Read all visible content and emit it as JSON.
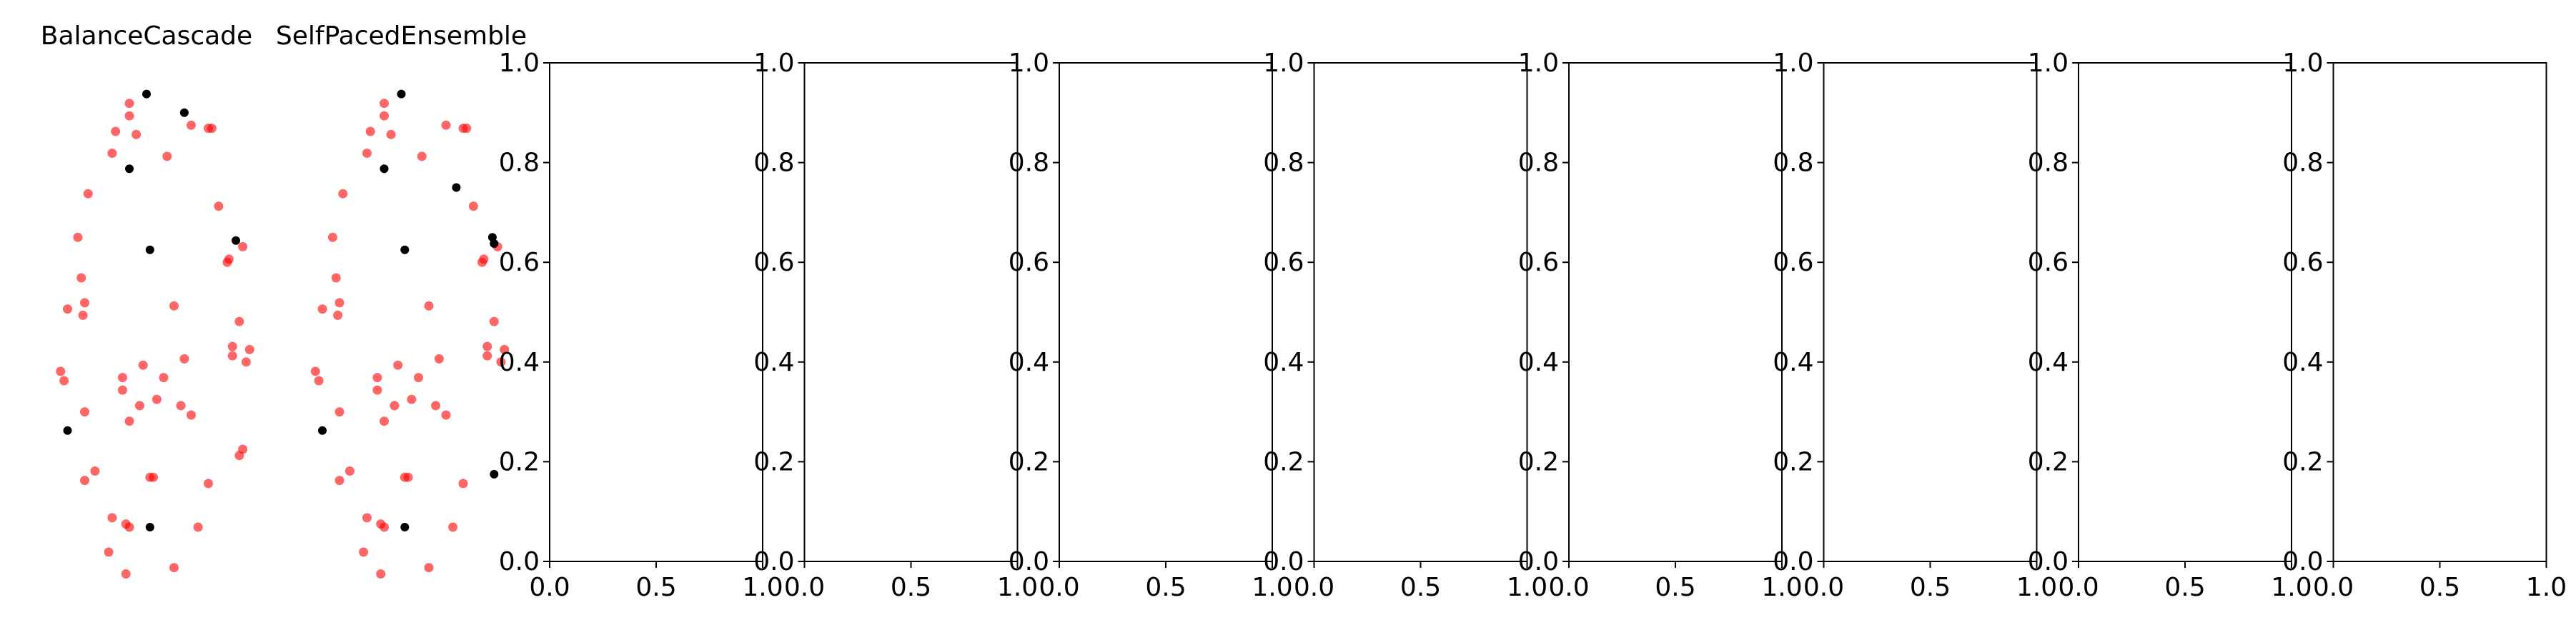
{
  "figure": {
    "background": "#ffffff",
    "point_colors": {
      "majority": "#ff0000",
      "minority": "#000000"
    }
  },
  "chart_data": [
    {
      "type": "scatter",
      "title": "BalanceCascade",
      "axes_visible": false,
      "xlim": [
        -3.1,
        3.1
      ],
      "ylim": [
        -4.0,
        4.0
      ],
      "series": [
        {
          "color": "#ff0000",
          "opacity": 0.6,
          "points": [
            [
              -0.5,
              3.35
            ],
            [
              -0.5,
              3.15
            ],
            [
              -0.9,
              2.9
            ],
            [
              -0.3,
              2.85
            ],
            [
              1.3,
              3.0
            ],
            [
              1.8,
              2.95
            ],
            [
              1.9,
              2.95
            ],
            [
              -1.0,
              2.55
            ],
            [
              0.6,
              2.5
            ],
            [
              -1.7,
              1.9
            ],
            [
              2.1,
              1.7
            ],
            [
              -2.0,
              1.2
            ],
            [
              2.8,
              1.05
            ],
            [
              2.4,
              0.85
            ],
            [
              2.35,
              0.8
            ],
            [
              -1.9,
              0.55
            ],
            [
              -1.8,
              0.15
            ],
            [
              0.8,
              0.1
            ],
            [
              -2.3,
              0.05
            ],
            [
              -1.85,
              -0.05
            ],
            [
              2.7,
              -0.15
            ],
            [
              2.5,
              -0.55
            ],
            [
              3.0,
              -0.6
            ],
            [
              2.5,
              -0.7
            ],
            [
              2.9,
              -0.8
            ],
            [
              -0.1,
              -0.85
            ],
            [
              1.1,
              -0.75
            ],
            [
              -2.5,
              -0.95
            ],
            [
              -2.4,
              -1.1
            ],
            [
              0.5,
              -1.05
            ],
            [
              -0.7,
              -1.05
            ],
            [
              -0.7,
              -1.25
            ],
            [
              0.3,
              -1.4
            ],
            [
              -0.2,
              -1.5
            ],
            [
              1.0,
              -1.5
            ],
            [
              -1.8,
              -1.6
            ],
            [
              1.3,
              -1.65
            ],
            [
              -0.5,
              -1.75
            ],
            [
              2.8,
              -2.2
            ],
            [
              2.7,
              -2.3
            ],
            [
              -1.5,
              -2.55
            ],
            [
              -1.8,
              -2.7
            ],
            [
              0.1,
              -2.65
            ],
            [
              0.2,
              -2.65
            ],
            [
              1.8,
              -2.75
            ],
            [
              -1.0,
              -3.3
            ],
            [
              -0.6,
              -3.4
            ],
            [
              -0.5,
              -3.45
            ],
            [
              1.5,
              -3.45
            ],
            [
              -1.1,
              -3.85
            ],
            [
              0.8,
              -4.1
            ],
            [
              -0.6,
              -4.2
            ]
          ]
        },
        {
          "color": "#000000",
          "opacity": 1,
          "points": [
            [
              0.0,
              3.5
            ],
            [
              1.1,
              3.2
            ],
            [
              -0.5,
              2.3
            ],
            [
              0.1,
              1.0
            ],
            [
              2.6,
              1.15
            ],
            [
              -2.3,
              -1.9
            ],
            [
              0.1,
              -3.45
            ]
          ]
        }
      ]
    },
    {
      "type": "scatter",
      "title": "SelfPacedEnsemble",
      "axes_visible": false,
      "xlim": [
        -3.1,
        3.1
      ],
      "ylim": [
        -4.0,
        4.0
      ],
      "series": [
        {
          "color": "#ff0000",
          "opacity": 0.6,
          "points": [
            [
              -0.5,
              3.35
            ],
            [
              -0.5,
              3.15
            ],
            [
              -0.9,
              2.9
            ],
            [
              -0.3,
              2.85
            ],
            [
              1.3,
              3.0
            ],
            [
              1.8,
              2.95
            ],
            [
              1.9,
              2.95
            ],
            [
              -1.0,
              2.55
            ],
            [
              0.6,
              2.5
            ],
            [
              -1.7,
              1.9
            ],
            [
              2.1,
              1.7
            ],
            [
              -2.0,
              1.2
            ],
            [
              2.8,
              1.05
            ],
            [
              2.4,
              0.85
            ],
            [
              2.35,
              0.8
            ],
            [
              -1.9,
              0.55
            ],
            [
              -1.8,
              0.15
            ],
            [
              0.8,
              0.1
            ],
            [
              -2.3,
              0.05
            ],
            [
              -1.85,
              -0.05
            ],
            [
              2.7,
              -0.15
            ],
            [
              2.5,
              -0.55
            ],
            [
              3.0,
              -0.6
            ],
            [
              2.5,
              -0.7
            ],
            [
              2.9,
              -0.8
            ],
            [
              -0.1,
              -0.85
            ],
            [
              1.1,
              -0.75
            ],
            [
              -2.5,
              -0.95
            ],
            [
              -2.4,
              -1.1
            ],
            [
              0.5,
              -1.05
            ],
            [
              -0.7,
              -1.05
            ],
            [
              -0.7,
              -1.25
            ],
            [
              0.3,
              -1.4
            ],
            [
              -0.2,
              -1.5
            ],
            [
              1.0,
              -1.5
            ],
            [
              -1.8,
              -1.6
            ],
            [
              1.3,
              -1.65
            ],
            [
              -0.5,
              -1.75
            ],
            [
              -1.5,
              -2.55
            ],
            [
              -1.8,
              -2.7
            ],
            [
              0.1,
              -2.65
            ],
            [
              0.2,
              -2.65
            ],
            [
              1.8,
              -2.75
            ],
            [
              -1.0,
              -3.3
            ],
            [
              -0.6,
              -3.4
            ],
            [
              -0.5,
              -3.45
            ],
            [
              1.5,
              -3.45
            ],
            [
              -1.1,
              -3.85
            ],
            [
              0.8,
              -4.1
            ],
            [
              -0.6,
              -4.2
            ]
          ]
        },
        {
          "color": "#000000",
          "opacity": 1,
          "points": [
            [
              0.0,
              3.5
            ],
            [
              -0.5,
              2.3
            ],
            [
              1.6,
              2.0
            ],
            [
              2.65,
              1.2
            ],
            [
              2.7,
              1.1
            ],
            [
              0.1,
              1.0
            ],
            [
              -2.3,
              -1.9
            ],
            [
              2.7,
              -2.6
            ],
            [
              0.1,
              -3.45
            ]
          ]
        }
      ]
    },
    {
      "type": "scatter",
      "title": "",
      "xlim": [
        0.0,
        1.0
      ],
      "ylim": [
        0.0,
        1.0
      ],
      "xticks": [
        "0.0",
        "0.5",
        "1.0"
      ],
      "yticks": [
        "0.0",
        "0.2",
        "0.4",
        "0.6",
        "0.8",
        "1.0"
      ],
      "series": []
    },
    {
      "type": "scatter",
      "title": "",
      "xlim": [
        0.0,
        1.0
      ],
      "ylim": [
        0.0,
        1.0
      ],
      "xticks": [
        "0.0",
        "0.5",
        "1.0"
      ],
      "yticks": [
        "0.0",
        "0.2",
        "0.4",
        "0.6",
        "0.8",
        "1.0"
      ],
      "series": []
    },
    {
      "type": "scatter",
      "title": "",
      "xlim": [
        0.0,
        1.0
      ],
      "ylim": [
        0.0,
        1.0
      ],
      "xticks": [
        "0.0",
        "0.5",
        "1.0"
      ],
      "yticks": [
        "0.0",
        "0.2",
        "0.4",
        "0.6",
        "0.8",
        "1.0"
      ],
      "series": []
    },
    {
      "type": "scatter",
      "title": "",
      "xlim": [
        0.0,
        1.0
      ],
      "ylim": [
        0.0,
        1.0
      ],
      "xticks": [
        "0.0",
        "0.5",
        "1.0"
      ],
      "yticks": [
        "0.0",
        "0.2",
        "0.4",
        "0.6",
        "0.8",
        "1.0"
      ],
      "series": []
    },
    {
      "type": "scatter",
      "title": "",
      "xlim": [
        0.0,
        1.0
      ],
      "ylim": [
        0.0,
        1.0
      ],
      "xticks": [
        "0.0",
        "0.5",
        "1.0"
      ],
      "yticks": [
        "0.0",
        "0.2",
        "0.4",
        "0.6",
        "0.8",
        "1.0"
      ],
      "series": []
    },
    {
      "type": "scatter",
      "title": "",
      "xlim": [
        0.0,
        1.0
      ],
      "ylim": [
        0.0,
        1.0
      ],
      "xticks": [
        "0.0",
        "0.5",
        "1.0"
      ],
      "yticks": [
        "0.0",
        "0.2",
        "0.4",
        "0.6",
        "0.8",
        "1.0"
      ],
      "series": []
    },
    {
      "type": "scatter",
      "title": "",
      "xlim": [
        0.0,
        1.0
      ],
      "ylim": [
        0.0,
        1.0
      ],
      "xticks": [
        "0.0",
        "0.5",
        "1.0"
      ],
      "yticks": [
        "0.0",
        "0.2",
        "0.4",
        "0.6",
        "0.8",
        "1.0"
      ],
      "series": []
    },
    {
      "type": "scatter",
      "title": "",
      "xlim": [
        0.0,
        1.0
      ],
      "ylim": [
        0.0,
        1.0
      ],
      "xticks": [
        "0.0",
        "0.5",
        "1.0"
      ],
      "yticks": [
        "0.0",
        "0.2",
        "0.4",
        "0.6",
        "0.8",
        "1.0"
      ],
      "series": []
    }
  ]
}
